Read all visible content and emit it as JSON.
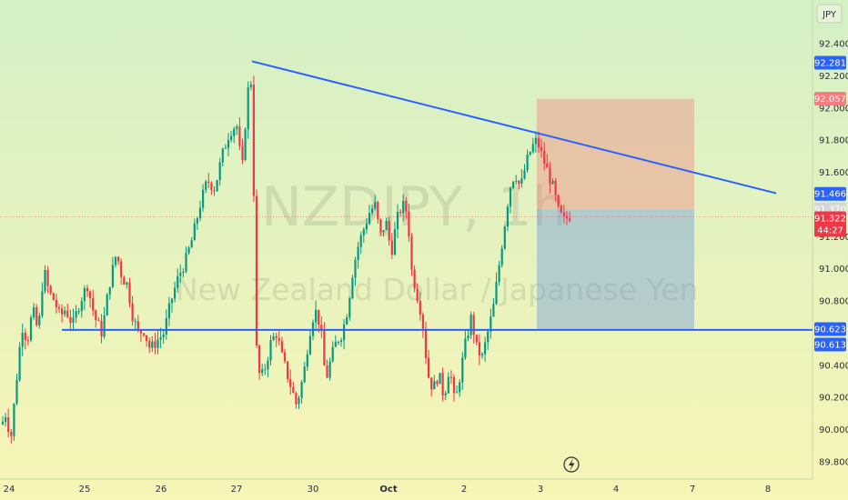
{
  "currency_button": "JPY",
  "watermark": {
    "symbol": "NZDJPY, 1h",
    "description": "New Zealand Dollar / Japanese Yen"
  },
  "colors": {
    "bg_top": "#d4f0c6",
    "bg_bottom": "#f8f5b6",
    "candle_up": "#089981",
    "candle_down": "#f23645",
    "trendline": "#2962ff",
    "stop_zone": "rgba(242,120,120,0.38)",
    "target_zone": "rgba(110,150,225,0.42)",
    "badge_blue": "#2962ff",
    "badge_red": "#f23645",
    "badge_pink": "#f77c80"
  },
  "price_badges": [
    {
      "label": "92.281",
      "kind": "blue",
      "price": 92.281
    },
    {
      "label": "92.057",
      "kind": "pink",
      "price": 92.057
    },
    {
      "label": "91.466",
      "kind": "blue",
      "price": 91.466
    },
    {
      "label": "91.370",
      "kind": "gray",
      "price": 91.37
    },
    {
      "label": "91.322",
      "kind": "red",
      "price": 91.322
    },
    {
      "label": "44:27",
      "kind": "red-sub",
      "price": 91.21
    },
    {
      "label": "90.623",
      "kind": "blue",
      "price": 90.623
    },
    {
      "label": "90.613",
      "kind": "blue",
      "price": 90.613
    }
  ],
  "chart_data": {
    "type": "candlestick",
    "title": "NZDJPY, 1h",
    "subtitle": "New Zealand Dollar / Japanese Yen",
    "y_axis": {
      "side": "right",
      "range": [
        89.75,
        92.58
      ],
      "ticks": [
        "92.400",
        "92.200",
        "92.000",
        "91.800",
        "91.600",
        "91.200",
        "91.000",
        "90.800",
        "90.400",
        "90.200",
        "90.000",
        "89.800"
      ]
    },
    "x_axis": {
      "ticks": [
        "24",
        "25",
        "26",
        "27",
        "30",
        "Oct",
        "2",
        "3",
        "4",
        "7",
        "8"
      ]
    },
    "grid": false,
    "last_price": 91.322,
    "countdown": "44:27",
    "horizontal_line": {
      "price": 90.62
    },
    "trendline": {
      "from": {
        "x": "27",
        "price": 92.29
      },
      "to": {
        "x": "7+",
        "price": 91.47
      }
    },
    "position": {
      "type": "short",
      "entry": 91.37,
      "stop": 92.057,
      "target": 90.623
    },
    "path": [
      [
        0,
        90.0
      ],
      [
        6,
        90.1
      ],
      [
        12,
        89.95
      ],
      [
        18,
        90.3
      ],
      [
        24,
        90.65
      ],
      [
        30,
        90.55
      ],
      [
        36,
        90.75
      ],
      [
        42,
        90.6
      ],
      [
        48,
        91.0
      ],
      [
        54,
        90.85
      ],
      [
        60,
        90.8
      ],
      [
        66,
        90.7
      ],
      [
        72,
        90.75
      ],
      [
        80,
        90.65
      ],
      [
        88,
        90.8
      ],
      [
        96,
        90.9
      ],
      [
        104,
        90.7
      ],
      [
        112,
        90.6
      ],
      [
        120,
        90.9
      ],
      [
        128,
        91.1
      ],
      [
        134,
        90.95
      ],
      [
        140,
        90.9
      ],
      [
        146,
        90.7
      ],
      [
        152,
        90.6
      ],
      [
        158,
        90.62
      ],
      [
        165,
        90.5
      ],
      [
        172,
        90.55
      ],
      [
        180,
        90.6
      ],
      [
        188,
        90.8
      ],
      [
        196,
        90.95
      ],
      [
        204,
        91.05
      ],
      [
        212,
        91.2
      ],
      [
        220,
        91.4
      ],
      [
        228,
        91.55
      ],
      [
        236,
        91.5
      ],
      [
        244,
        91.7
      ],
      [
        252,
        91.85
      ],
      [
        260,
        91.9
      ],
      [
        266,
        91.6
      ],
      [
        272,
        92.1
      ],
      [
        278,
        92.2
      ],
      [
        280,
        90.6
      ],
      [
        286,
        90.3
      ],
      [
        292,
        90.4
      ],
      [
        298,
        90.55
      ],
      [
        304,
        90.6
      ],
      [
        310,
        90.45
      ],
      [
        318,
        90.3
      ],
      [
        326,
        90.15
      ],
      [
        334,
        90.35
      ],
      [
        340,
        90.6
      ],
      [
        346,
        90.75
      ],
      [
        352,
        90.65
      ],
      [
        358,
        90.3
      ],
      [
        364,
        90.45
      ],
      [
        370,
        90.55
      ],
      [
        376,
        90.6
      ],
      [
        382,
        90.75
      ],
      [
        388,
        91.0
      ],
      [
        394,
        91.15
      ],
      [
        400,
        91.25
      ],
      [
        406,
        91.35
      ],
      [
        412,
        91.4
      ],
      [
        418,
        91.2
      ],
      [
        424,
        91.3
      ],
      [
        430,
        91.1
      ],
      [
        436,
        91.3
      ],
      [
        442,
        91.4
      ],
      [
        448,
        91.35
      ],
      [
        452,
        91.0
      ],
      [
        458,
        90.85
      ],
      [
        464,
        90.7
      ],
      [
        470,
        90.35
      ],
      [
        476,
        90.25
      ],
      [
        482,
        90.35
      ],
      [
        488,
        90.2
      ],
      [
        494,
        90.4
      ],
      [
        500,
        90.15
      ],
      [
        506,
        90.35
      ],
      [
        512,
        90.55
      ],
      [
        518,
        90.7
      ],
      [
        524,
        90.5
      ],
      [
        530,
        90.45
      ],
      [
        536,
        90.6
      ],
      [
        542,
        90.75
      ],
      [
        548,
        91.0
      ],
      [
        554,
        91.25
      ],
      [
        560,
        91.5
      ],
      [
        566,
        91.6
      ],
      [
        572,
        91.5
      ],
      [
        578,
        91.65
      ],
      [
        584,
        91.75
      ],
      [
        590,
        91.8
      ],
      [
        596,
        91.7
      ],
      [
        602,
        91.6
      ],
      [
        608,
        91.5
      ],
      [
        614,
        91.35
      ],
      [
        620,
        91.3
      ],
      [
        626,
        91.33
      ]
    ]
  }
}
